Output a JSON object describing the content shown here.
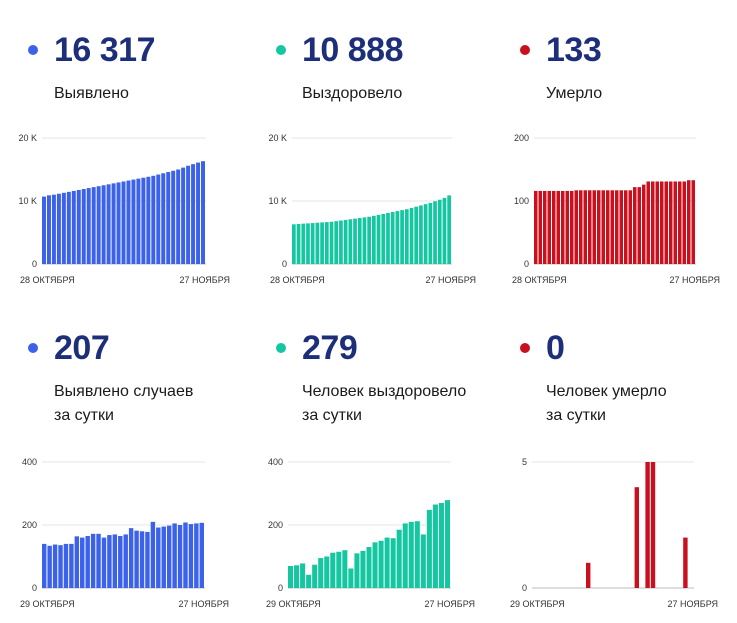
{
  "stats": [
    {
      "value": "16 317",
      "label": "Выявлено",
      "color": "#3b62e8"
    },
    {
      "value": "10 888",
      "label": "Выздоровело",
      "color": "#14c7a0"
    },
    {
      "value": "133",
      "label": "Умерло",
      "color": "#c8101e"
    },
    {
      "value": "207",
      "label": "Выявлено случаев\nза сутки",
      "color": "#3b62e8"
    },
    {
      "value": "279",
      "label": "Человек выздоровело\nза сутки",
      "color": "#14c7a0"
    },
    {
      "value": "0",
      "label": "Человек умерло\nза сутки",
      "color": "#c8101e"
    }
  ],
  "chart_data": [
    {
      "type": "bar",
      "color": "#3b62e8",
      "y_ticks": [
        {
          "v": 0,
          "t": "0"
        },
        {
          "v": 10000,
          "t": "10 K"
        },
        {
          "v": 20000,
          "t": "20 K"
        }
      ],
      "ylim": [
        0,
        20000
      ],
      "grid": true,
      "x_start_label": "28 ОКТЯБРЯ",
      "x_end_label": "27 НОЯБРЯ",
      "values": [
        10700,
        10900,
        11000,
        11150,
        11300,
        11450,
        11600,
        11750,
        11900,
        12050,
        12200,
        12350,
        12500,
        12650,
        12800,
        12950,
        13100,
        13250,
        13400,
        13550,
        13700,
        13850,
        14000,
        14200,
        14400,
        14600,
        14800,
        15000,
        15300,
        15600,
        15850,
        16100,
        16317
      ]
    },
    {
      "type": "bar",
      "color": "#14c7a0",
      "y_ticks": [
        {
          "v": 0,
          "t": "0"
        },
        {
          "v": 10000,
          "t": "10 K"
        },
        {
          "v": 20000,
          "t": "20 K"
        }
      ],
      "ylim": [
        0,
        20000
      ],
      "grid": true,
      "x_start_label": "28 ОКТЯБРЯ",
      "x_end_label": "27 НОЯБРЯ",
      "values": [
        6300,
        6350,
        6400,
        6450,
        6500,
        6550,
        6600,
        6650,
        6700,
        6800,
        6900,
        7000,
        7100,
        7200,
        7300,
        7400,
        7500,
        7650,
        7800,
        7950,
        8100,
        8250,
        8400,
        8550,
        8700,
        8900,
        9100,
        9300,
        9500,
        9700,
        9950,
        10200,
        10500,
        10888
      ]
    },
    {
      "type": "bar",
      "color": "#c8101e",
      "y_ticks": [
        {
          "v": 0,
          "t": "0"
        },
        {
          "v": 100,
          "t": "100"
        },
        {
          "v": 200,
          "t": "200"
        }
      ],
      "ylim": [
        0,
        200
      ],
      "grid": true,
      "x_start_label": "28 ОКТЯБРЯ",
      "x_end_label": "27 НОЯБРЯ",
      "values": [
        116,
        116,
        116,
        116,
        116,
        116,
        116,
        116,
        116,
        117,
        117,
        117,
        117,
        117,
        117,
        117,
        117,
        117,
        117,
        117,
        117,
        117,
        122,
        122,
        126,
        131,
        131,
        131,
        131,
        131,
        131,
        131,
        131,
        131,
        133,
        133
      ]
    },
    {
      "type": "bar",
      "color": "#3b62e8",
      "y_ticks": [
        {
          "v": 0,
          "t": "0"
        },
        {
          "v": 200,
          "t": "200"
        },
        {
          "v": 400,
          "t": "400"
        }
      ],
      "ylim": [
        0,
        400
      ],
      "grid": true,
      "x_start_label": "29 ОКТЯБРЯ",
      "x_end_label": "27 НОЯБРЯ",
      "values": [
        140,
        134,
        138,
        136,
        140,
        140,
        164,
        160,
        165,
        172,
        172,
        160,
        168,
        170,
        165,
        170,
        190,
        182,
        180,
        178,
        210,
        192,
        195,
        198,
        205,
        200,
        208,
        203,
        205,
        207
      ]
    },
    {
      "type": "bar",
      "color": "#14c7a0",
      "y_ticks": [
        {
          "v": 0,
          "t": "0"
        },
        {
          "v": 200,
          "t": "200"
        },
        {
          "v": 400,
          "t": "400"
        }
      ],
      "ylim": [
        0,
        400
      ],
      "grid": true,
      "x_start_label": "29 ОКТЯБРЯ",
      "x_end_label": "27 НОЯБРЯ",
      "values": [
        70,
        72,
        78,
        42,
        74,
        95,
        100,
        112,
        115,
        120,
        62,
        110,
        118,
        130,
        145,
        150,
        160,
        158,
        185,
        205,
        210,
        212,
        170,
        248,
        265,
        270,
        279
      ]
    },
    {
      "type": "bar",
      "color": "#c8101e",
      "y_ticks": [
        {
          "v": 0,
          "t": "0"
        },
        {
          "v": 5,
          "t": "5"
        }
      ],
      "ylim": [
        0,
        5
      ],
      "grid": true,
      "x_start_label": "29 ОКТЯБРЯ",
      "x_end_label": "27 НОЯБРЯ",
      "values": [
        0,
        0,
        0,
        0,
        0,
        0,
        0,
        0,
        0,
        0,
        1,
        0,
        0,
        0,
        0,
        0,
        0,
        0,
        0,
        4,
        0,
        5,
        5,
        0,
        0,
        0,
        0,
        0,
        2,
        0
      ]
    }
  ]
}
